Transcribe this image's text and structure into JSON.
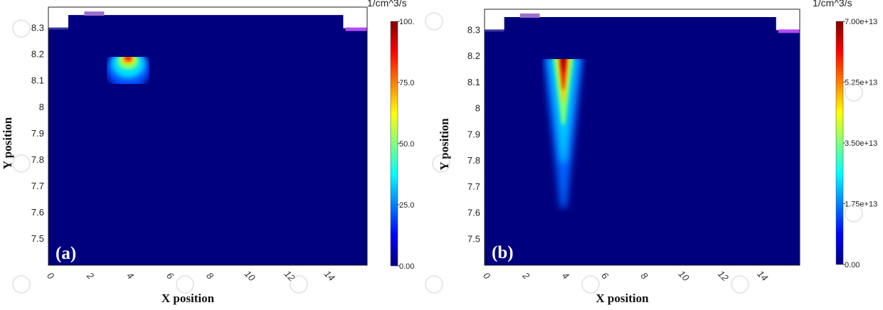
{
  "chart_data": [
    {
      "type": "heatmap",
      "panel_label": "(a)",
      "xlabel": "X position",
      "ylabel": "Y position",
      "x_ticks": [
        "0",
        "2",
        "4",
        "6",
        "8",
        "10",
        "12",
        "14"
      ],
      "x_tick_values": [
        0,
        2,
        4,
        6,
        8,
        10,
        12,
        14
      ],
      "y_ticks": [
        "8.3",
        "8.2",
        "8.1",
        "8",
        "7.9",
        "7.8",
        "7.7",
        "7.6",
        "7.5"
      ],
      "y_tick_values": [
        8.3,
        8.2,
        8.1,
        8.0,
        7.9,
        7.8,
        7.7,
        7.6,
        7.5
      ],
      "xlim": [
        0,
        16
      ],
      "ylim": [
        7.4,
        8.38
      ],
      "colorbar": {
        "unit": "1/cm^3/s",
        "min": 0,
        "max": 100,
        "tick_labels": [
          "100.",
          "75.0",
          "50.0",
          "25.0",
          "0.00"
        ],
        "tick_values": [
          100,
          75,
          50,
          25,
          0
        ]
      },
      "hotspot": {
        "x_range": [
          3,
          5
        ],
        "y_range": [
          8.1,
          8.2
        ],
        "peak": {
          "x": 4,
          "y": 8.18
        },
        "peak_value": 100
      },
      "geometry": {
        "surface_y": 8.35,
        "left_step": {
          "x_range": [
            0,
            1
          ],
          "y": 8.3
        },
        "right_step": {
          "x_range": [
            14.8,
            16
          ],
          "y": 8.3
        },
        "contact_x_range": [
          1.8,
          2.8
        ]
      }
    },
    {
      "type": "heatmap",
      "panel_label": "(b)",
      "xlabel": "X position",
      "ylabel": "Y position",
      "x_ticks": [
        "0",
        "2",
        "4",
        "6",
        "8",
        "10",
        "12",
        "14"
      ],
      "x_tick_values": [
        0,
        2,
        4,
        6,
        8,
        10,
        12,
        14
      ],
      "y_ticks": [
        "8.3",
        "8.2",
        "8.1",
        "8",
        "7.9",
        "7.8",
        "7.7",
        "7.6",
        "7.5"
      ],
      "y_tick_values": [
        8.3,
        8.2,
        8.1,
        8.0,
        7.9,
        7.8,
        7.7,
        7.6,
        7.5
      ],
      "xlim": [
        0,
        16
      ],
      "ylim": [
        7.4,
        8.38
      ],
      "colorbar": {
        "unit": "1/cm^3/s",
        "min": 0,
        "max": 70000000000000.0,
        "tick_labels": [
          "7.00e+13",
          "5.25e+13",
          "3.50e+13",
          "1.75e+13",
          "0.00"
        ],
        "tick_values": [
          70000000000000.0,
          52500000000000.0,
          35000000000000.0,
          17500000000000.0,
          0
        ]
      },
      "hotspot": {
        "x_range": [
          3,
          5
        ],
        "y_range": [
          7.62,
          8.2
        ],
        "peak": {
          "x": 4,
          "y": 8.15
        },
        "peak_value": 70000000000000.0
      },
      "geometry": {
        "surface_y": 8.35,
        "left_step": {
          "x_range": [
            0,
            1
          ],
          "y": 8.3
        },
        "right_step": {
          "x_range": [
            14.8,
            16
          ],
          "y": 8.3
        },
        "contact_x_range": [
          1.8,
          2.8
        ]
      }
    }
  ]
}
